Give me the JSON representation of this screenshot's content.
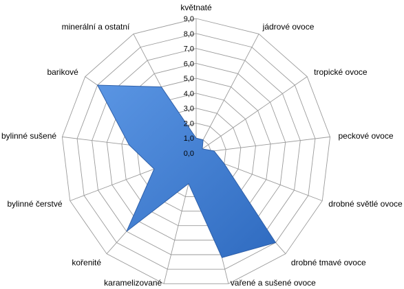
{
  "chart_data": {
    "type": "radar",
    "title": "",
    "categories": [
      "květnaté",
      "jádrové ovoce",
      "tropické ovoce",
      "peckové ovoce",
      "drobné světlé ovoce",
      "drobné tmavé ovoce",
      "vařené a sušené ovoce",
      "karamelizované",
      "kořenité",
      "bylinné čerstvé",
      "bylinné sušené",
      "barikové",
      "minerální a ostatní"
    ],
    "tick_labels": [
      "0,0",
      "1,0",
      "2,0",
      "3,0",
      "4,0",
      "5,0",
      "6,0",
      "7,0",
      "8,0",
      "9,0"
    ],
    "rlim": [
      0,
      9
    ],
    "grid": true,
    "legend": "none",
    "series": [
      {
        "values": [
          1.0,
          1.0,
          0.5,
          1.2,
          2.0,
          8.0,
          7.2,
          2.1,
          7.0,
          3.0,
          4.5,
          8.0,
          5.0
        ],
        "color": "#3F7FD4",
        "stroke": "#2E5FA8"
      }
    ],
    "grid_color": "#9A9A9A"
  }
}
